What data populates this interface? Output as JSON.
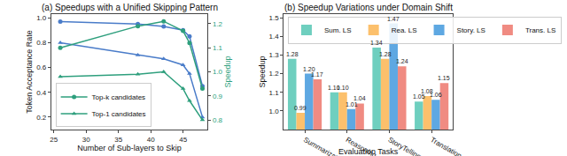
{
  "chart_data": [
    {
      "type": "line",
      "title": "(a) Speedups with a Unified Skipping Pattern",
      "x_label": "Number of Sub-layers to Skip",
      "y_label": "Token Acceptance Rate",
      "y2_label": "Speedup",
      "x": [
        26,
        38,
        42,
        45,
        46,
        48
      ],
      "xlim": [
        24.6,
        48.8
      ],
      "xticks": [
        25,
        30,
        35,
        40,
        45
      ],
      "ylim": [
        0.1,
        1.03
      ],
      "yticks": [
        0.2,
        0.4,
        0.6,
        0.8,
        {
          "value": 1,
          "label": "1.0"
        }
      ],
      "y2lim": [
        0.76,
        1.24
      ],
      "y2ticks": [
        0.8,
        0.9,
        {
          "value": 1,
          "label": "1.0"
        },
        1.1,
        1.2
      ],
      "grid": false,
      "legend": "lower left",
      "series": [
        {
          "name": "Top-k candidates",
          "color": "#2e9f7d",
          "marker": "circle",
          "axis": "y2",
          "values": [
            1.1,
            1.19,
            1.21,
            1.17,
            1.12,
            0.93
          ]
        },
        {
          "name": "Top-1 candidates",
          "color": "#2e9f7d",
          "marker": "triangle",
          "axis": "y2",
          "values": [
            0.98,
            0.99,
            1.0,
            0.93,
            0.88,
            0.8
          ]
        },
        {
          "name": "Top-k candidates",
          "color": "#4a7cc9",
          "marker": "circle",
          "axis": "y",
          "values": [
            0.97,
            0.95,
            0.93,
            0.9,
            0.85,
            0.45
          ]
        },
        {
          "name": "Top-1 candidates",
          "color": "#4a7cc9",
          "marker": "triangle",
          "axis": "y",
          "values": [
            0.8,
            0.7,
            0.67,
            0.62,
            0.55,
            0.2
          ]
        }
      ]
    },
    {
      "type": "bar",
      "title": "(b) Speedup Variations under Domain Shift",
      "x_label": "Evaluation Tasks",
      "y_label": "Speedup",
      "categories": [
        "Summarization",
        "Reasoning",
        "StoryTelling",
        "Translation"
      ],
      "ylim": [
        0.9,
        1.52
      ],
      "yticks": [
        {
          "value": 1,
          "label": "1.0"
        },
        1.1,
        1.2,
        1.3,
        1.4,
        1.5
      ],
      "grid": false,
      "legend": "upper left",
      "data_labels": true,
      "series": [
        {
          "name": "Sum. LS",
          "color": "#6fcfbf",
          "values": [
            1.28,
            1.1,
            1.34,
            1.05
          ],
          "value_labels": [
            "1.28",
            "1.10",
            "1.34",
            "1.05"
          ]
        },
        {
          "name": "Rea. LS",
          "color": "#fcc06c",
          "values": [
            0.99,
            1.1,
            1.28,
            1.08
          ],
          "value_labels": [
            "0.99",
            "1.10",
            "1.28",
            "1.08"
          ]
        },
        {
          "name": "Story. LS",
          "color": "#5ea8e2",
          "values": [
            1.2,
            1.01,
            1.47,
            1.06
          ],
          "value_labels": [
            "1.20",
            "1.01",
            "1.47",
            "1.06"
          ]
        },
        {
          "name": "Trans. LS",
          "color": "#f08b82",
          "values": [
            1.17,
            1.04,
            1.24,
            1.15
          ],
          "value_labels": [
            "1.17",
            "1.04",
            "1.24",
            "1.15"
          ]
        }
      ]
    }
  ]
}
